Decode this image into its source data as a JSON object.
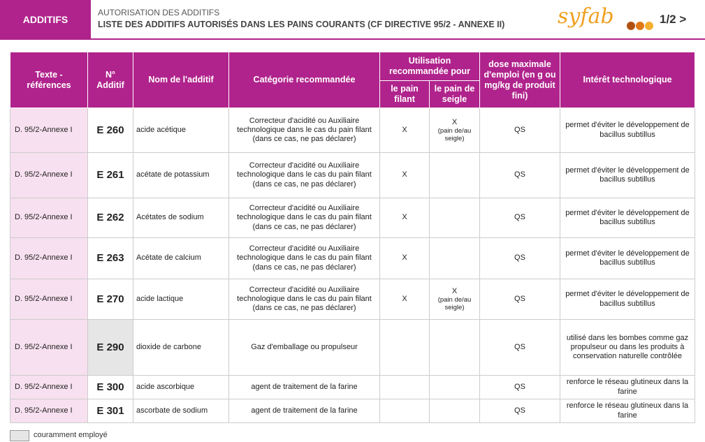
{
  "header": {
    "section": "ADDITIFS",
    "supertitle": "AUTORISATION DES ADDITIFS",
    "title": "LISTE DES ADDITIFS AUTORISÉS DANS LES PAINS COURANTS (CF DIRECTIVE 95/2 - ANNEXE II)",
    "logo": "syfab",
    "page": "1/2",
    "next": ">"
  },
  "table": {
    "columns": {
      "ref": "Texte -références",
      "code": "N° Additif",
      "name": "Nom de l'additif",
      "category": "Catégorie recommandée",
      "usage": "Utilisation recommandée pour",
      "filant": "le pain filant",
      "seigle": "le pain de seigle",
      "dose": "dose maximale d'emploi (en g ou mg/kg de produit fini)",
      "interest": "Intérêt technologique"
    },
    "rows": [
      {
        "ref": "D. 95/2-Annexe I",
        "code": "E 260",
        "name": "acide  acétique",
        "category": "Correcteur d'acidité ou Auxiliaire technologique dans le cas du pain filant (dans ce cas, ne pas déclarer)",
        "filant": "X",
        "seigle": "X",
        "seigle_note": "(pain de/au seigle)",
        "dose": "QS",
        "interest": "permet d'éviter le développement de bacillus subtillus"
      },
      {
        "ref": "D. 95/2-Annexe I",
        "code": "E 261",
        "name": "acétate de potassium",
        "category": "Correcteur d'acidité ou Auxiliaire technologique dans le cas du pain filant (dans ce cas, ne pas déclarer)",
        "filant": "X",
        "dose": "QS",
        "interest": "permet d'éviter le développement de bacillus subtillus"
      },
      {
        "ref": "D. 95/2-Annexe I",
        "code": "E 262",
        "name": "Acétates de sodium",
        "category": "Correcteur d'acidité ou Auxiliaire technologique dans le cas du pain filant (dans ce cas, ne pas déclarer)",
        "filant": "X",
        "dose": "QS",
        "interest": "permet d'éviter le développement de bacillus subtillus"
      },
      {
        "ref": "D. 95/2-Annexe I",
        "code": "E 263",
        "name": "Acétate de calcium",
        "category": "Correcteur d'acidité ou Auxiliaire technologique dans le cas du pain filant (dans ce cas, ne pas déclarer)",
        "filant": "X",
        "dose": "QS",
        "interest": "permet d'éviter le développement de bacillus subtillus"
      },
      {
        "ref": "D. 95/2-Annexe I",
        "code": "E 270",
        "name": "acide lactique",
        "category": "Correcteur d'acidité ou Auxiliaire technologique dans le cas du pain filant (dans ce cas, ne pas déclarer)",
        "filant": "X",
        "seigle": "X",
        "seigle_note": "(pain de/au seigle)",
        "dose": "QS",
        "interest": "permet d'éviter le développement de bacillus subtillus"
      },
      {
        "ref": "D. 95/2-Annexe I",
        "code": "E 290",
        "highlighted": true,
        "name": "dioxide de carbone",
        "category": "Gaz d'emballage ou propulseur",
        "dose": "QS",
        "interest": "utilisé dans les bombes comme gaz propulseur ou dans les produits à conservation naturelle contrôlée"
      },
      {
        "ref": "D. 95/2-Annexe I",
        "code": "E 300",
        "name": "acide ascorbique",
        "category": "agent de traitement de la farine",
        "dose": "QS",
        "interest": "renforce le réseau glutineux dans la farine"
      },
      {
        "ref": "D. 95/2-Annexe I",
        "code": "E 301",
        "name": "ascorbate de sodium",
        "category": "agent de traitement de la farine",
        "dose": "QS",
        "interest": "renforce le réseau glutineux dans la farine"
      }
    ]
  },
  "legend": {
    "label": "couramment employé"
  }
}
